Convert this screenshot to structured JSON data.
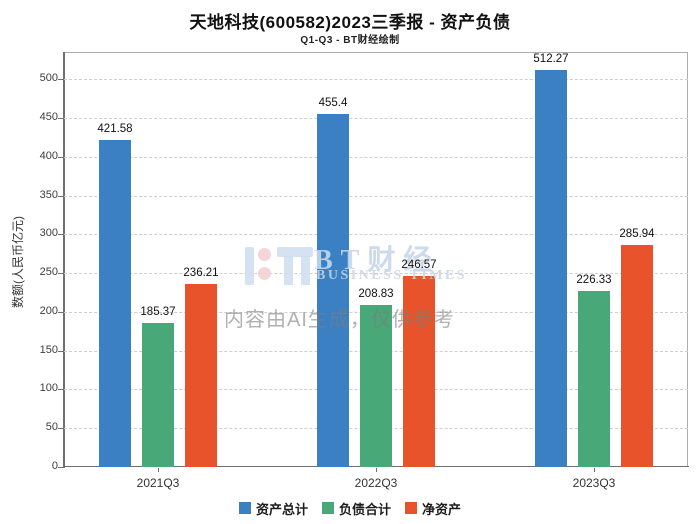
{
  "header": {
    "title": "天地科技(600582)2023三季报 - 资产负债",
    "subtitle": "Q1-Q3 - BT财经绘制"
  },
  "chart_data": {
    "type": "bar",
    "categories": [
      "2021Q3",
      "2022Q3",
      "2023Q3"
    ],
    "series": [
      {
        "name": "资产总计",
        "color": "#3a80c2",
        "values": [
          421.58,
          455.4,
          512.27
        ]
      },
      {
        "name": "负债合计",
        "color": "#48a878",
        "values": [
          185.37,
          208.83,
          226.33
        ]
      },
      {
        "name": "净资产",
        "color": "#e8532b",
        "values": [
          236.21,
          246.57,
          285.94
        ]
      }
    ],
    "title": "天地科技(600582)2023三季报 - 资产负债",
    "subtitle": "Q1-Q3 - BT财经绘制",
    "xlabel": "",
    "ylabel": "数额(人民币亿元)",
    "ylim": [
      0,
      535
    ],
    "yticks": [
      0,
      50,
      100,
      150,
      200,
      250,
      300,
      350,
      400,
      450,
      500
    ],
    "grid": "horizontal-dashed",
    "legend_position": "bottom",
    "bar_value_labels": true
  },
  "watermark": {
    "bt_text": "BT财经",
    "business_text": "BUSINESS TIMES",
    "ai_note": "内容由AI生成，仅供参考"
  },
  "colors": {
    "assets_blue": "#3a80c2",
    "liabilities_green": "#48a878",
    "net_orange": "#e8532b",
    "gridline": "#cfcfcf",
    "axis": "#6f6f6f"
  }
}
